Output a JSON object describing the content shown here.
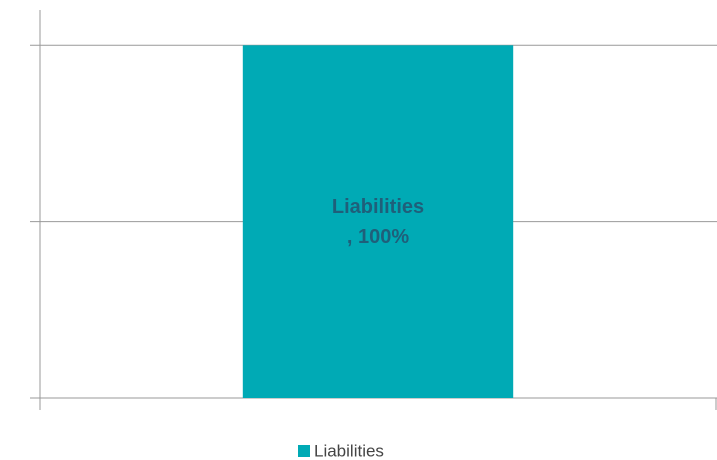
{
  "chart_data": {
    "type": "bar",
    "stacked": true,
    "categories": [
      null
    ],
    "series": [
      {
        "name": "Liabilities",
        "color": "#00aab5",
        "values": [
          100
        ],
        "value_labels": [
          "Liabilities\n, 100%"
        ]
      }
    ],
    "ylim": [
      0,
      110
    ],
    "yticks": [
      0,
      50,
      100
    ],
    "grid": true,
    "legend": "bottom"
  }
}
